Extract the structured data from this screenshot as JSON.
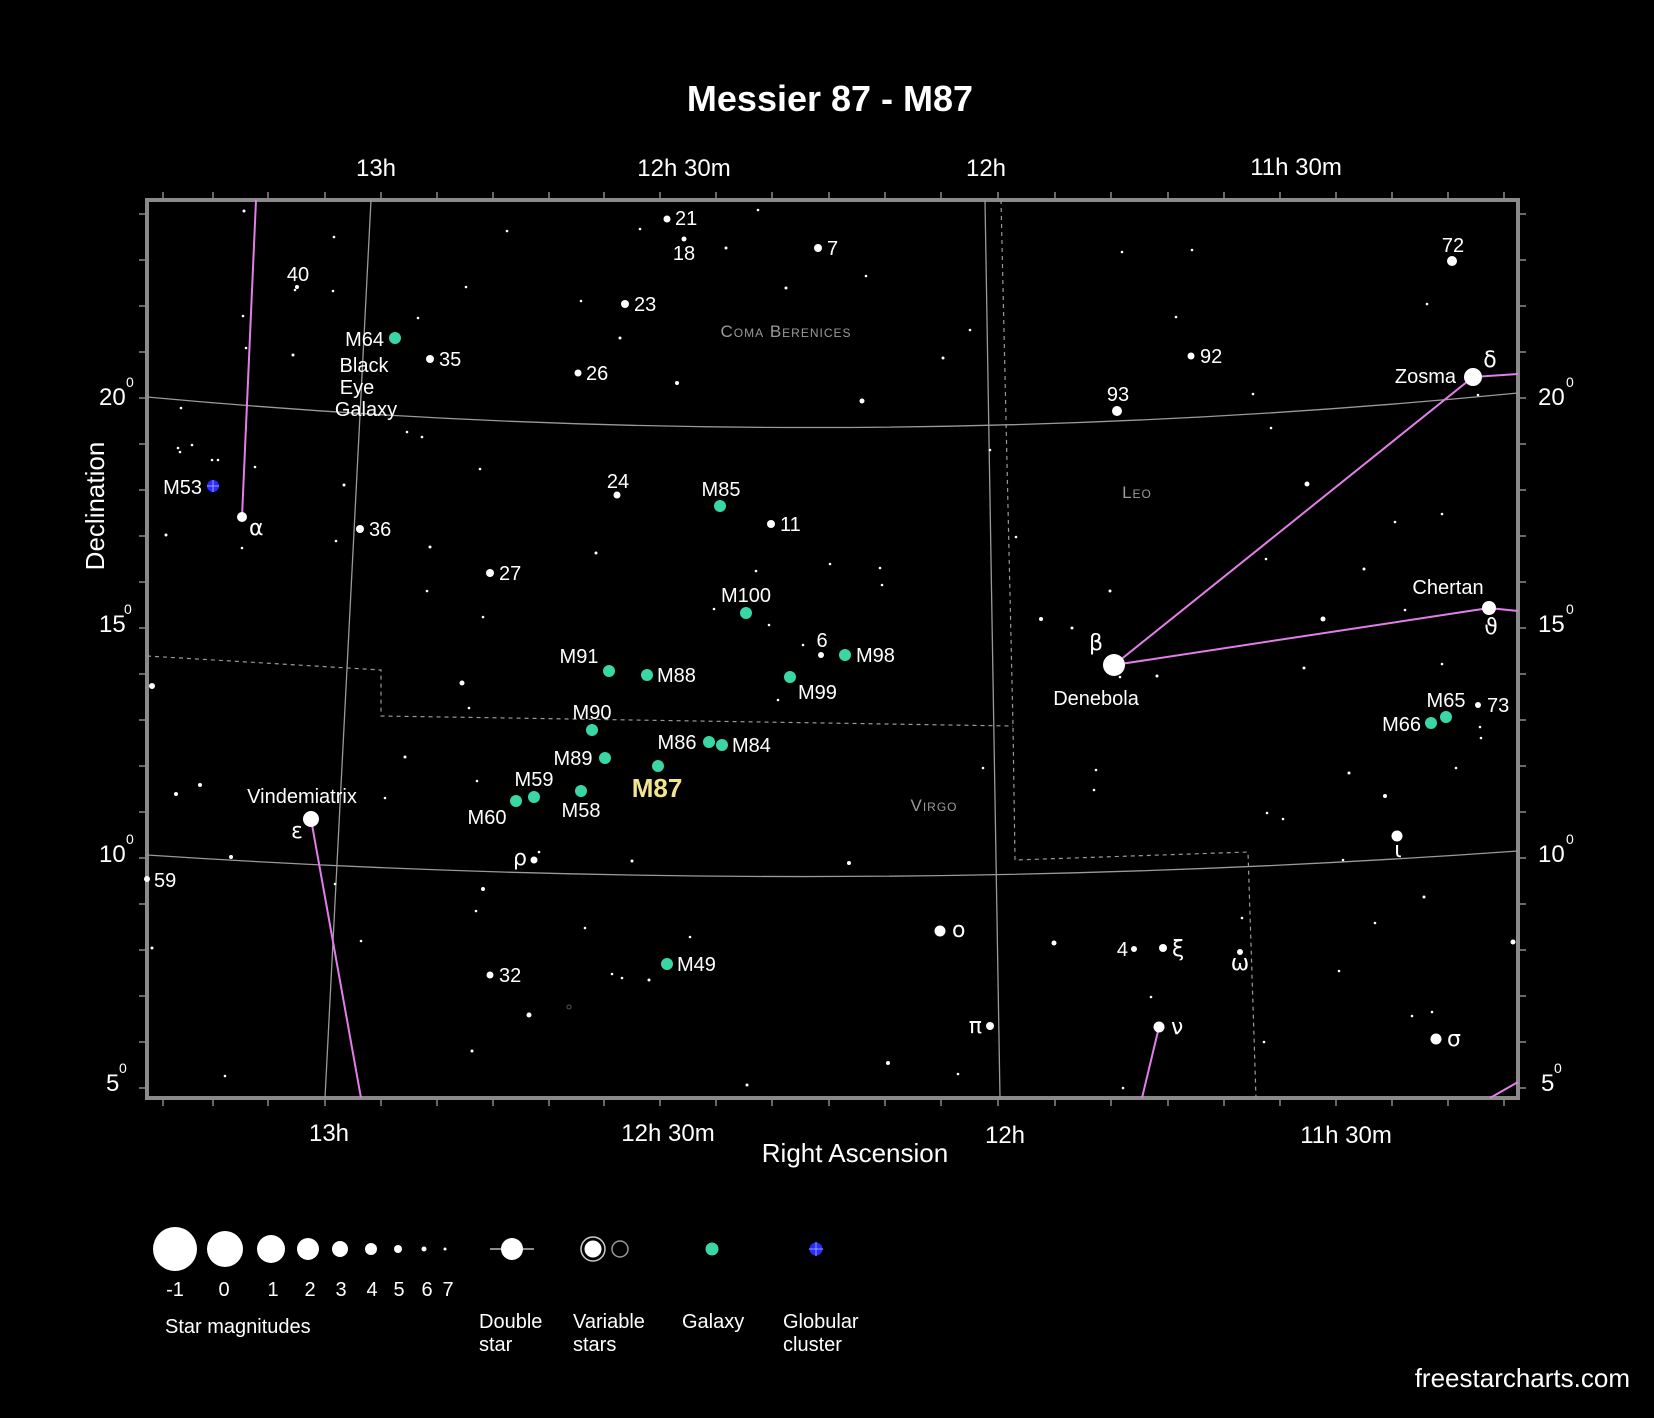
{
  "title": "Messier 87 - M87",
  "axes": {
    "x_label": "Right Ascension",
    "y_label": "Declination",
    "ra_ticks_top": [
      "13h",
      "12h 30m",
      "12h",
      "11h 30m"
    ],
    "ra_ticks_bottom": [
      "13h",
      "12h 30m",
      "12h",
      "11h 30m"
    ],
    "dec_ticks": [
      {
        "deg": "20",
        "sup": "0"
      },
      {
        "deg": "15",
        "sup": "0"
      },
      {
        "deg": "10",
        "sup": "0"
      },
      {
        "deg": "5",
        "sup": "0"
      }
    ]
  },
  "constellations": {
    "coma": "Coma Berenices",
    "leo": "Leo",
    "virgo": "Virgo"
  },
  "target": {
    "name": "M87"
  },
  "galaxies": [
    "M64",
    "M85",
    "M100",
    "M98",
    "M99",
    "M91",
    "M88",
    "M90",
    "M86",
    "M84",
    "M89",
    "M59",
    "M58",
    "M60",
    "M49",
    "M65",
    "M66"
  ],
  "galaxy_color": "#3ad6a6",
  "globular_color": "#2a2cff",
  "line_color": "#e27ee9",
  "labels": {
    "m64_desc_1": "Black",
    "m64_desc_2": "Eye",
    "m64_desc_3": "Galaxy",
    "m53": "M53",
    "n21": "21",
    "n18": "18",
    "n7": "7",
    "n40": "40",
    "n23": "23",
    "n35": "35",
    "n26": "26",
    "n92": "92",
    "n72": "72",
    "n93": "93",
    "n24": "24",
    "n11": "11",
    "n36": "36",
    "n27": "27",
    "n6": "6",
    "n73": "73",
    "n59": "59",
    "n32": "32",
    "n4": "4",
    "zosma": "Zosma",
    "chertan": "Chertan",
    "denebola": "Denebola",
    "vindemiatrix": "Vindemiatrix",
    "alpha": "α",
    "delta": "δ",
    "theta": "ϑ",
    "beta": "β",
    "epsilon": "ε",
    "rho": "ρ",
    "omicron": "o",
    "xi": "ξ",
    "omega": "ω",
    "pi": "π",
    "nu": "ν",
    "sigma": "σ",
    "iota": "ι"
  },
  "legend": {
    "magnitudes": [
      "-1",
      "0",
      "1",
      "2",
      "3",
      "4",
      "5",
      "6",
      "7"
    ],
    "magnitudes_title": "Star magnitudes",
    "double_star_1": "Double",
    "double_star_2": "star",
    "variable_1": "Variable",
    "variable_2": "stars",
    "galaxy": "Galaxy",
    "globular_1": "Globular",
    "globular_2": "cluster"
  },
  "credit": "freestarcharts.com"
}
